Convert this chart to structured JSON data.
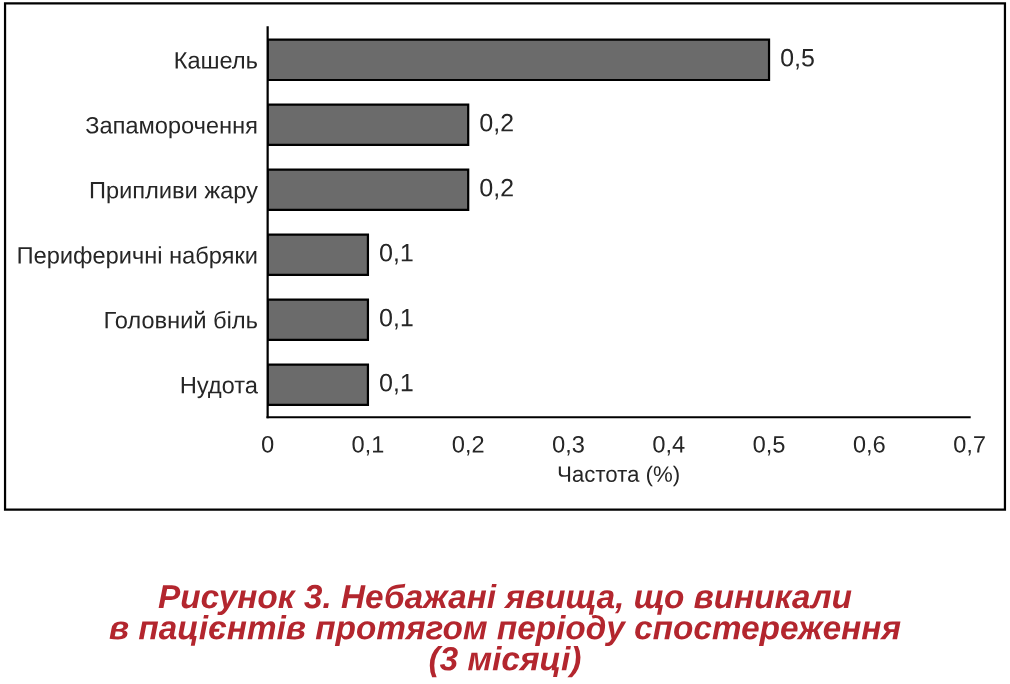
{
  "chart_data": {
    "type": "bar",
    "orientation": "horizontal",
    "title": "Рисунок 3. Небажані явища, що виникали\nв пацієнтів протягом періоду спостереження\n(3 місяці)",
    "xlabel": "Частота (%)",
    "categories": [
      "Кашель",
      "Запаморочення",
      "Припливи жару",
      "Периферичні набряки",
      "Головний біль",
      "Нудота"
    ],
    "values": [
      0.5,
      0.2,
      0.2,
      0.1,
      0.1,
      0.1
    ],
    "value_labels": [
      "0,5",
      "0,2",
      "0,2",
      "0,1",
      "0,1",
      "0,1"
    ],
    "color": "#6b6b6b",
    "xlim": [
      0,
      0.7
    ],
    "xticks": [
      0,
      {
        "value": 0.1,
        "label": "0,1"
      },
      {
        "value": 0.2,
        "label": "0,2"
      },
      {
        "value": 0.3,
        "label": "0,3"
      },
      {
        "value": 0.4,
        "label": "0,4"
      },
      {
        "value": 0.5,
        "label": "0,5"
      },
      {
        "value": 0.6,
        "label": "0,6"
      },
      {
        "value": 0.7,
        "label": "0,7"
      }
    ],
    "grid": false,
    "legend": false
  }
}
